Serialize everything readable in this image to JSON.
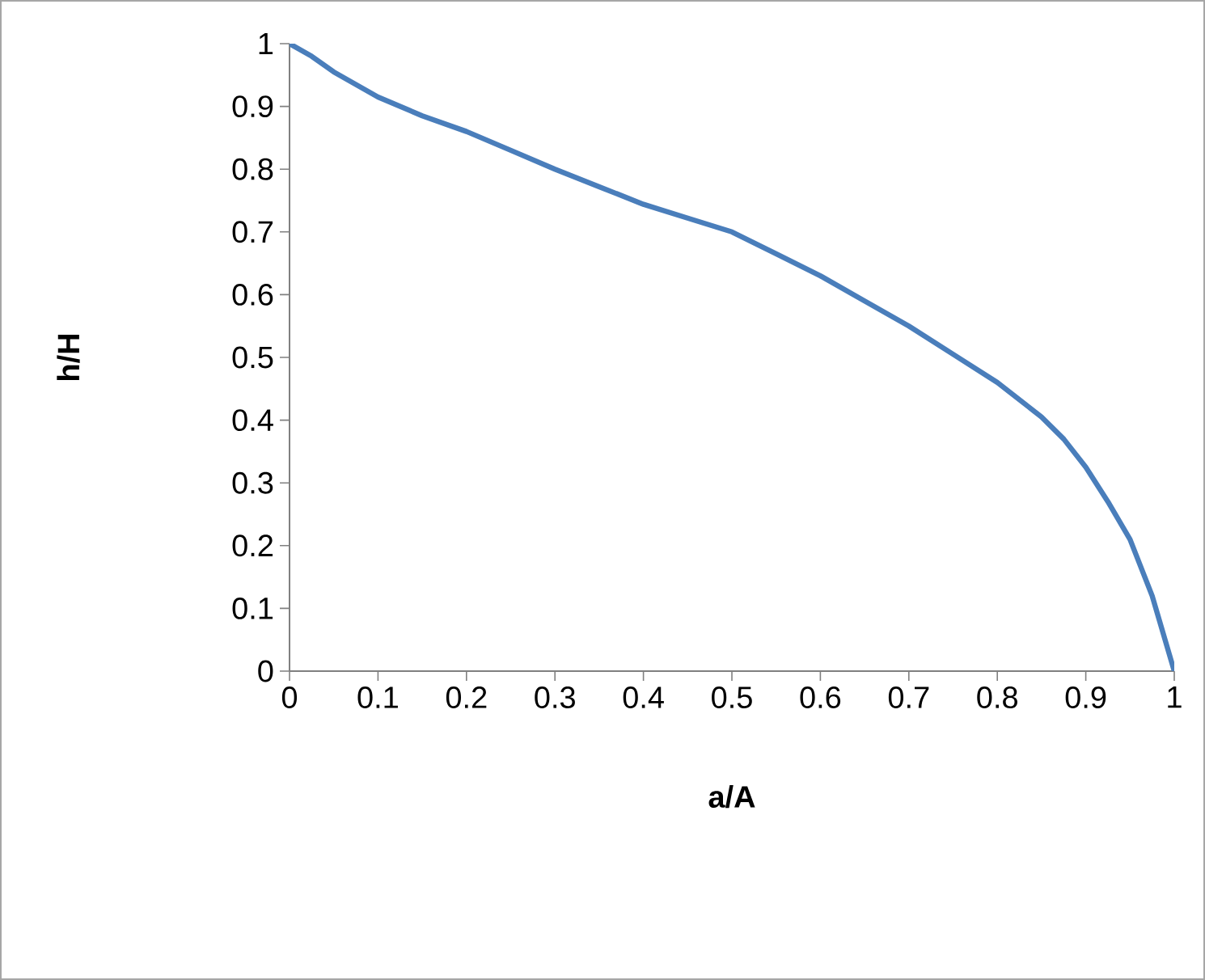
{
  "chart_data": {
    "type": "line",
    "xlabel": "a/A",
    "ylabel": "h/H",
    "series": [
      {
        "color": "#4a7ebb",
        "x": [
          0,
          0.025,
          0.05,
          0.075,
          0.1,
          0.15,
          0.2,
          0.25,
          0.3,
          0.35,
          0.4,
          0.45,
          0.5,
          0.55,
          0.6,
          0.65,
          0.7,
          0.75,
          0.8,
          0.85,
          0.875,
          0.9,
          0.925,
          0.95,
          0.975,
          1
        ],
        "values": [
          1,
          0.98,
          0.955,
          0.935,
          0.915,
          0.885,
          0.86,
          0.83,
          0.8,
          0.772,
          0.744,
          0.722,
          0.7,
          0.665,
          0.63,
          0.59,
          0.55,
          0.505,
          0.46,
          0.405,
          0.37,
          0.325,
          0.27,
          0.21,
          0.12,
          0
        ]
      }
    ],
    "xlim": [
      0,
      1
    ],
    "ylim": [
      0,
      1
    ],
    "xticks": [
      0,
      0.1,
      0.2,
      0.3,
      0.4,
      0.5,
      0.6,
      0.7,
      0.8,
      0.9,
      1
    ],
    "yticks": [
      0,
      0.1,
      0.2,
      0.3,
      0.4,
      0.5,
      0.6,
      0.7,
      0.8,
      0.9,
      1
    ],
    "grid": false,
    "legend": false,
    "marker": "none",
    "line_style": "solid"
  }
}
